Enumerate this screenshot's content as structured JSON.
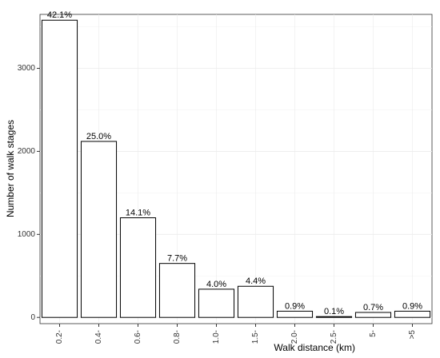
{
  "chart_data": {
    "type": "bar",
    "x_label": "Walk distance (km)",
    "y_label": "Number of walk stages",
    "categories": [
      "0.2-",
      "0.4-",
      "0.6-",
      "0.8-",
      "1.0-",
      "1.5-",
      "2.0-",
      "2.5-",
      "5-",
      ">5"
    ],
    "values": [
      3580,
      2120,
      1200,
      650,
      340,
      375,
      75,
      10,
      60,
      75
    ],
    "bar_labels": [
      "42.1%",
      "25.0%",
      "14.1%",
      "7.7%",
      "4.0%",
      "4.4%",
      "0.9%",
      "0.1%",
      "0.7%",
      "0.9%"
    ],
    "color": "#ffffff",
    "edge_color": "#000000",
    "ylim": [
      -75,
      3650
    ],
    "yticks": [
      0,
      1000,
      2000,
      3000
    ],
    "grid": true
  }
}
